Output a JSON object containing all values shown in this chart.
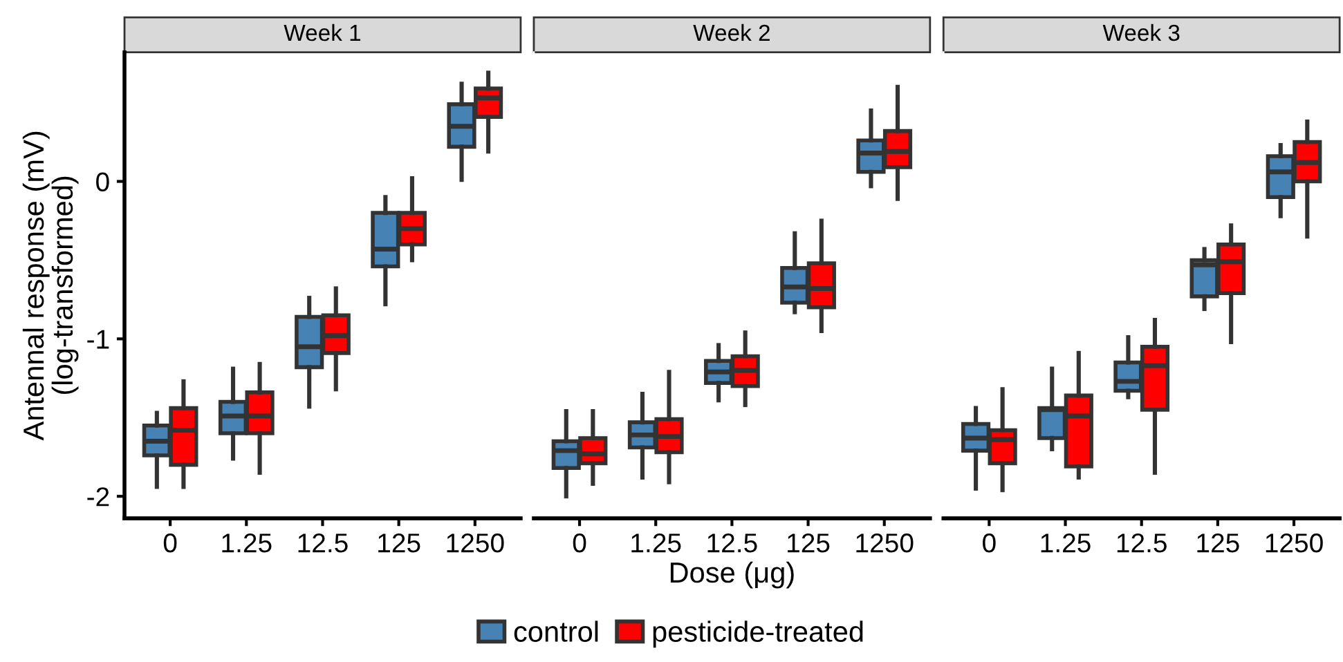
{
  "chart_data": [
    {
      "type": "box",
      "title": "Week 1",
      "ylabel": "Antennal response (mV)\n(log-transformed)",
      "categories": [
        "0",
        "1.25",
        "12.5",
        "125",
        "1250"
      ],
      "ylim": [
        -2.14,
        0.82
      ],
      "yticks": [
        -2,
        -1,
        0
      ],
      "grid": false,
      "legend": "bottom",
      "series": [
        {
          "name": "control",
          "color": "#4682b4",
          "boxes": [
            {
              "low": -1.94,
              "q1": -1.74,
              "median": -1.65,
              "q3": -1.55,
              "high": -1.47
            },
            {
              "low": -1.76,
              "q1": -1.6,
              "median": -1.49,
              "q3": -1.4,
              "high": -1.19
            },
            {
              "low": -1.43,
              "q1": -1.18,
              "median": -1.05,
              "q3": -0.86,
              "high": -0.74
            },
            {
              "low": -0.78,
              "q1": -0.54,
              "median": -0.43,
              "q3": -0.2,
              "high": -0.1
            },
            {
              "low": 0.01,
              "q1": 0.22,
              "median": 0.35,
              "q3": 0.49,
              "high": 0.62
            }
          ]
        },
        {
          "name": "pesticide-treated",
          "color": "#ff0000",
          "boxes": [
            {
              "low": -1.94,
              "q1": -1.8,
              "median": -1.58,
              "q3": -1.44,
              "high": -1.27
            },
            {
              "low": -1.85,
              "q1": -1.6,
              "median": -1.49,
              "q3": -1.34,
              "high": -1.16
            },
            {
              "low": -1.32,
              "q1": -1.09,
              "median": -0.98,
              "q3": -0.85,
              "high": -0.68
            },
            {
              "low": -0.5,
              "q1": -0.4,
              "median": -0.3,
              "q3": -0.2,
              "high": 0.02
            },
            {
              "low": 0.19,
              "q1": 0.41,
              "median": 0.53,
              "q3": 0.59,
              "high": 0.69
            }
          ]
        }
      ]
    },
    {
      "type": "box",
      "title": "Week 2",
      "xlabel": "Dose (μg)",
      "categories": [
        "0",
        "1.25",
        "12.5",
        "125",
        "1250"
      ],
      "ylim": [
        -2.14,
        0.82
      ],
      "yticks": [
        -2,
        -1,
        0
      ],
      "tick_labels": "x",
      "grid": false,
      "series": [
        {
          "color": "#4682b4",
          "boxes": [
            {
              "low": -2.0,
              "q1": -1.82,
              "median": -1.71,
              "q3": -1.65,
              "high": -1.46
            },
            {
              "low": -1.88,
              "q1": -1.69,
              "median": -1.61,
              "q3": -1.53,
              "high": -1.35
            },
            {
              "low": -1.39,
              "q1": -1.28,
              "median": -1.21,
              "q3": -1.14,
              "high": -1.04
            },
            {
              "low": -0.83,
              "q1": -0.77,
              "median": -0.67,
              "q3": -0.55,
              "high": -0.33
            },
            {
              "low": -0.03,
              "q1": 0.06,
              "median": 0.18,
              "q3": 0.26,
              "high": 0.45
            }
          ]
        },
        {
          "color": "#ff0000",
          "boxes": [
            {
              "low": -1.92,
              "q1": -1.79,
              "median": -1.73,
              "q3": -1.63,
              "high": -1.46
            },
            {
              "low": -1.91,
              "q1": -1.72,
              "median": -1.62,
              "q3": -1.51,
              "high": -1.21
            },
            {
              "low": -1.42,
              "q1": -1.3,
              "median": -1.2,
              "q3": -1.11,
              "high": -0.96
            },
            {
              "low": -0.95,
              "q1": -0.8,
              "median": -0.68,
              "q3": -0.52,
              "high": -0.25
            },
            {
              "low": -0.11,
              "q1": 0.09,
              "median": 0.19,
              "q3": 0.32,
              "high": 0.6
            }
          ]
        }
      ]
    },
    {
      "type": "box",
      "title": "Week 3",
      "categories": [
        "0",
        "1.25",
        "12.5",
        "125",
        "1250"
      ],
      "ylim": [
        -2.14,
        0.82
      ],
      "yticks": [
        -2,
        -1,
        0
      ],
      "tick_labels": "x",
      "grid": false,
      "series": [
        {
          "color": "#4682b4",
          "boxes": [
            {
              "low": -1.95,
              "q1": -1.71,
              "median": -1.63,
              "q3": -1.54,
              "high": -1.44
            },
            {
              "low": -1.7,
              "q1": -1.63,
              "median": -1.45,
              "q3": -1.44,
              "high": -1.19
            },
            {
              "low": -1.37,
              "q1": -1.33,
              "median": -1.27,
              "q3": -1.15,
              "high": -0.99
            },
            {
              "low": -0.81,
              "q1": -0.73,
              "median": -0.53,
              "q3": -0.5,
              "high": -0.43
            },
            {
              "low": -0.22,
              "q1": -0.1,
              "median": 0.06,
              "q3": 0.16,
              "high": 0.23
            }
          ]
        },
        {
          "color": "#ff0000",
          "boxes": [
            {
              "low": -1.96,
              "q1": -1.79,
              "median": -1.64,
              "q3": -1.58,
              "high": -1.32
            },
            {
              "low": -1.88,
              "q1": -1.81,
              "median": -1.49,
              "q3": -1.36,
              "high": -1.09
            },
            {
              "low": -1.85,
              "q1": -1.45,
              "median": -1.17,
              "q3": -1.05,
              "high": -0.88
            },
            {
              "low": -1.02,
              "q1": -0.71,
              "median": -0.51,
              "q3": -0.4,
              "high": -0.28
            },
            {
              "low": -0.35,
              "q1": 0.0,
              "median": 0.12,
              "q3": 0.25,
              "high": 0.38
            }
          ]
        }
      ]
    }
  ]
}
